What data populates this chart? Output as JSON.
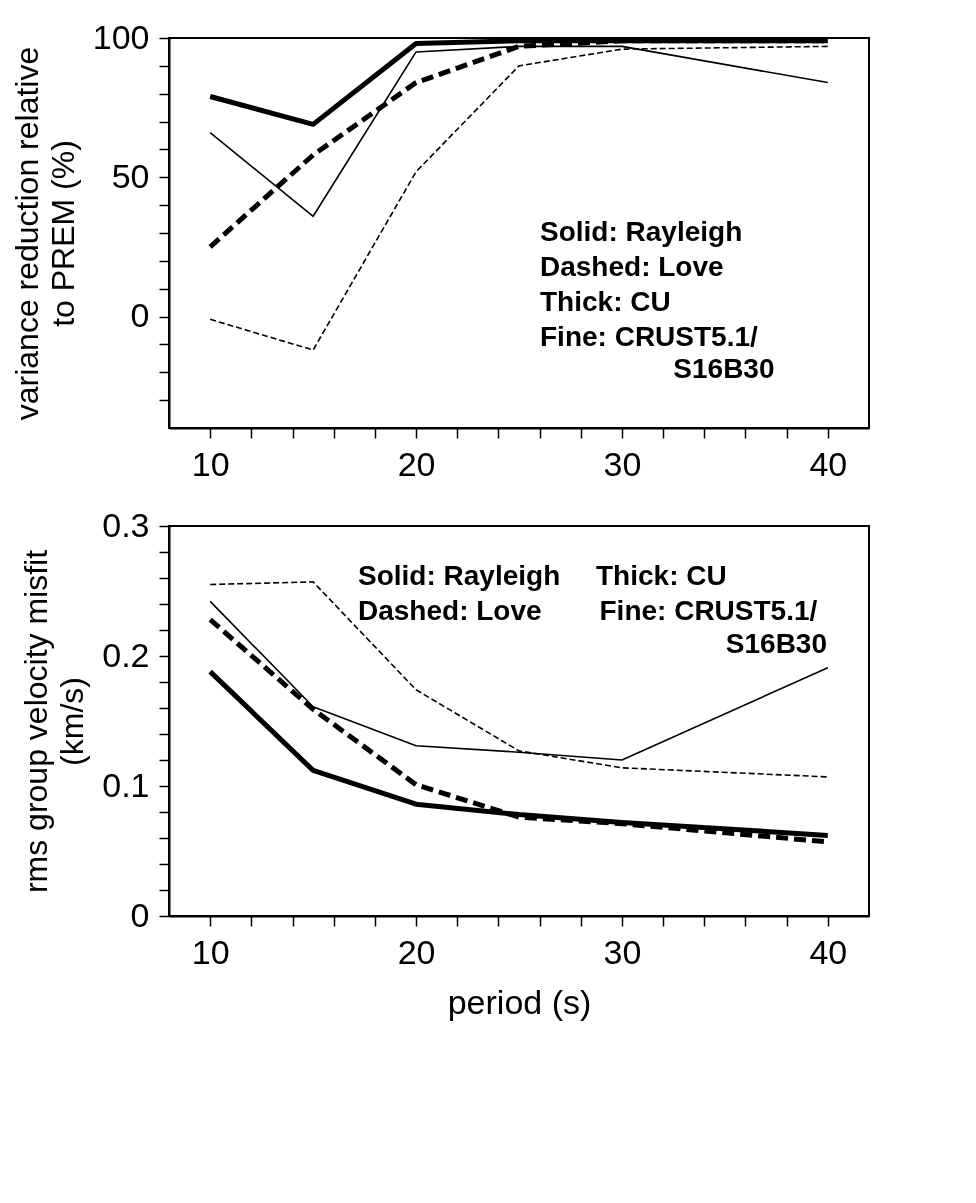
{
  "chart_data": [
    {
      "type": "line",
      "ylabel": "variance reduction relative to PREM (%)",
      "x": [
        10,
        15,
        20,
        25,
        30,
        40
      ],
      "xlim": [
        8,
        42
      ],
      "xticks": [
        10,
        {
          "value": 12,
          "label": null
        },
        {
          "value": 14,
          "label": null
        },
        {
          "value": 16,
          "label": null
        },
        {
          "value": 18,
          "label": null
        },
        20,
        {
          "value": 22,
          "label": null
        },
        {
          "value": 24,
          "label": null
        },
        {
          "value": 26,
          "label": null
        },
        {
          "value": 28,
          "label": null
        },
        30,
        {
          "value": 32,
          "label": null
        },
        {
          "value": 34,
          "label": null
        },
        {
          "value": 36,
          "label": null
        },
        {
          "value": 38,
          "label": null
        },
        40
      ],
      "ylim": [
        -40,
        100
      ],
      "yticks": [
        {
          "value": -30,
          "label": null
        },
        {
          "value": -20,
          "label": null
        },
        {
          "value": -10,
          "label": null
        },
        0,
        {
          "value": 10,
          "label": null
        },
        {
          "value": 20,
          "label": null
        },
        {
          "value": 30,
          "label": null
        },
        {
          "value": 40,
          "label": null
        },
        50,
        {
          "value": 60,
          "label": null
        },
        {
          "value": 70,
          "label": null
        },
        {
          "value": 80,
          "label": null
        },
        {
          "value": 90,
          "label": null
        },
        100
      ],
      "grid": false,
      "series": [
        {
          "color": "#000000",
          "line_style": "solid",
          "values": [
            79,
            69,
            98,
            99,
            99,
            99
          ]
        },
        {
          "color": "#000000",
          "line_style": "dashed",
          "values": [
            25,
            58,
            84,
            97,
            99,
            99
          ]
        },
        {
          "color": "#000000",
          "line_style": "solid",
          "values": [
            66,
            36,
            95,
            97,
            97,
            84
          ]
        },
        {
          "color": "#000000",
          "line_style": "dashed",
          "values": [
            -1,
            -12,
            52,
            90,
            96,
            97
          ]
        }
      ],
      "annotations": [
        "Solid: Rayleigh",
        "Dashed: Love",
        "Thick: CU",
        "Fine: CRUST5.1/",
        "S16B30"
      ]
    },
    {
      "type": "line",
      "xlabel": "period (s)",
      "ylabel": "rms group velocity misfit (km/s)",
      "x": [
        10,
        15,
        20,
        25,
        30,
        40
      ],
      "xlim": [
        8,
        42
      ],
      "xticks": [
        10,
        {
          "value": 12,
          "label": null
        },
        {
          "value": 14,
          "label": null
        },
        {
          "value": 16,
          "label": null
        },
        {
          "value": 18,
          "label": null
        },
        20,
        {
          "value": 22,
          "label": null
        },
        {
          "value": 24,
          "label": null
        },
        {
          "value": 26,
          "label": null
        },
        {
          "value": 28,
          "label": null
        },
        30,
        {
          "value": 32,
          "label": null
        },
        {
          "value": 34,
          "label": null
        },
        {
          "value": 36,
          "label": null
        },
        {
          "value": 38,
          "label": null
        },
        40
      ],
      "ylim": [
        0,
        0.3
      ],
      "yticks": [
        0,
        {
          "value": 0.02,
          "label": null
        },
        {
          "value": 0.04,
          "label": null
        },
        {
          "value": 0.06,
          "label": null
        },
        {
          "value": 0.08,
          "label": null
        },
        0.1,
        {
          "value": 0.12,
          "label": null
        },
        {
          "value": 0.14,
          "label": null
        },
        {
          "value": 0.16,
          "label": null
        },
        {
          "value": 0.18,
          "label": null
        },
        0.2,
        {
          "value": 0.22,
          "label": null
        },
        {
          "value": 0.24,
          "label": null
        },
        {
          "value": 0.26,
          "label": null
        },
        {
          "value": 0.28,
          "label": null
        },
        0.3
      ],
      "grid": false,
      "series": [
        {
          "color": "#000000",
          "line_style": "solid",
          "values": [
            0.188,
            0.112,
            0.086,
            0.078,
            0.072,
            0.062
          ]
        },
        {
          "color": "#000000",
          "line_style": "dashed",
          "values": [
            0.228,
            0.159,
            0.101,
            0.076,
            0.071,
            0.057
          ]
        },
        {
          "color": "#000000",
          "line_style": "solid",
          "values": [
            0.242,
            0.161,
            0.131,
            0.126,
            0.12,
            0.191
          ]
        },
        {
          "color": "#000000",
          "line_style": "dashed",
          "values": [
            0.255,
            0.257,
            0.174,
            0.127,
            0.114,
            0.107
          ]
        }
      ],
      "annotations": [
        "Solid: Rayleigh",
        "Thick: CU",
        "Dashed: Love",
        "Fine: CRUST5.1/",
        "S16B30"
      ]
    }
  ]
}
